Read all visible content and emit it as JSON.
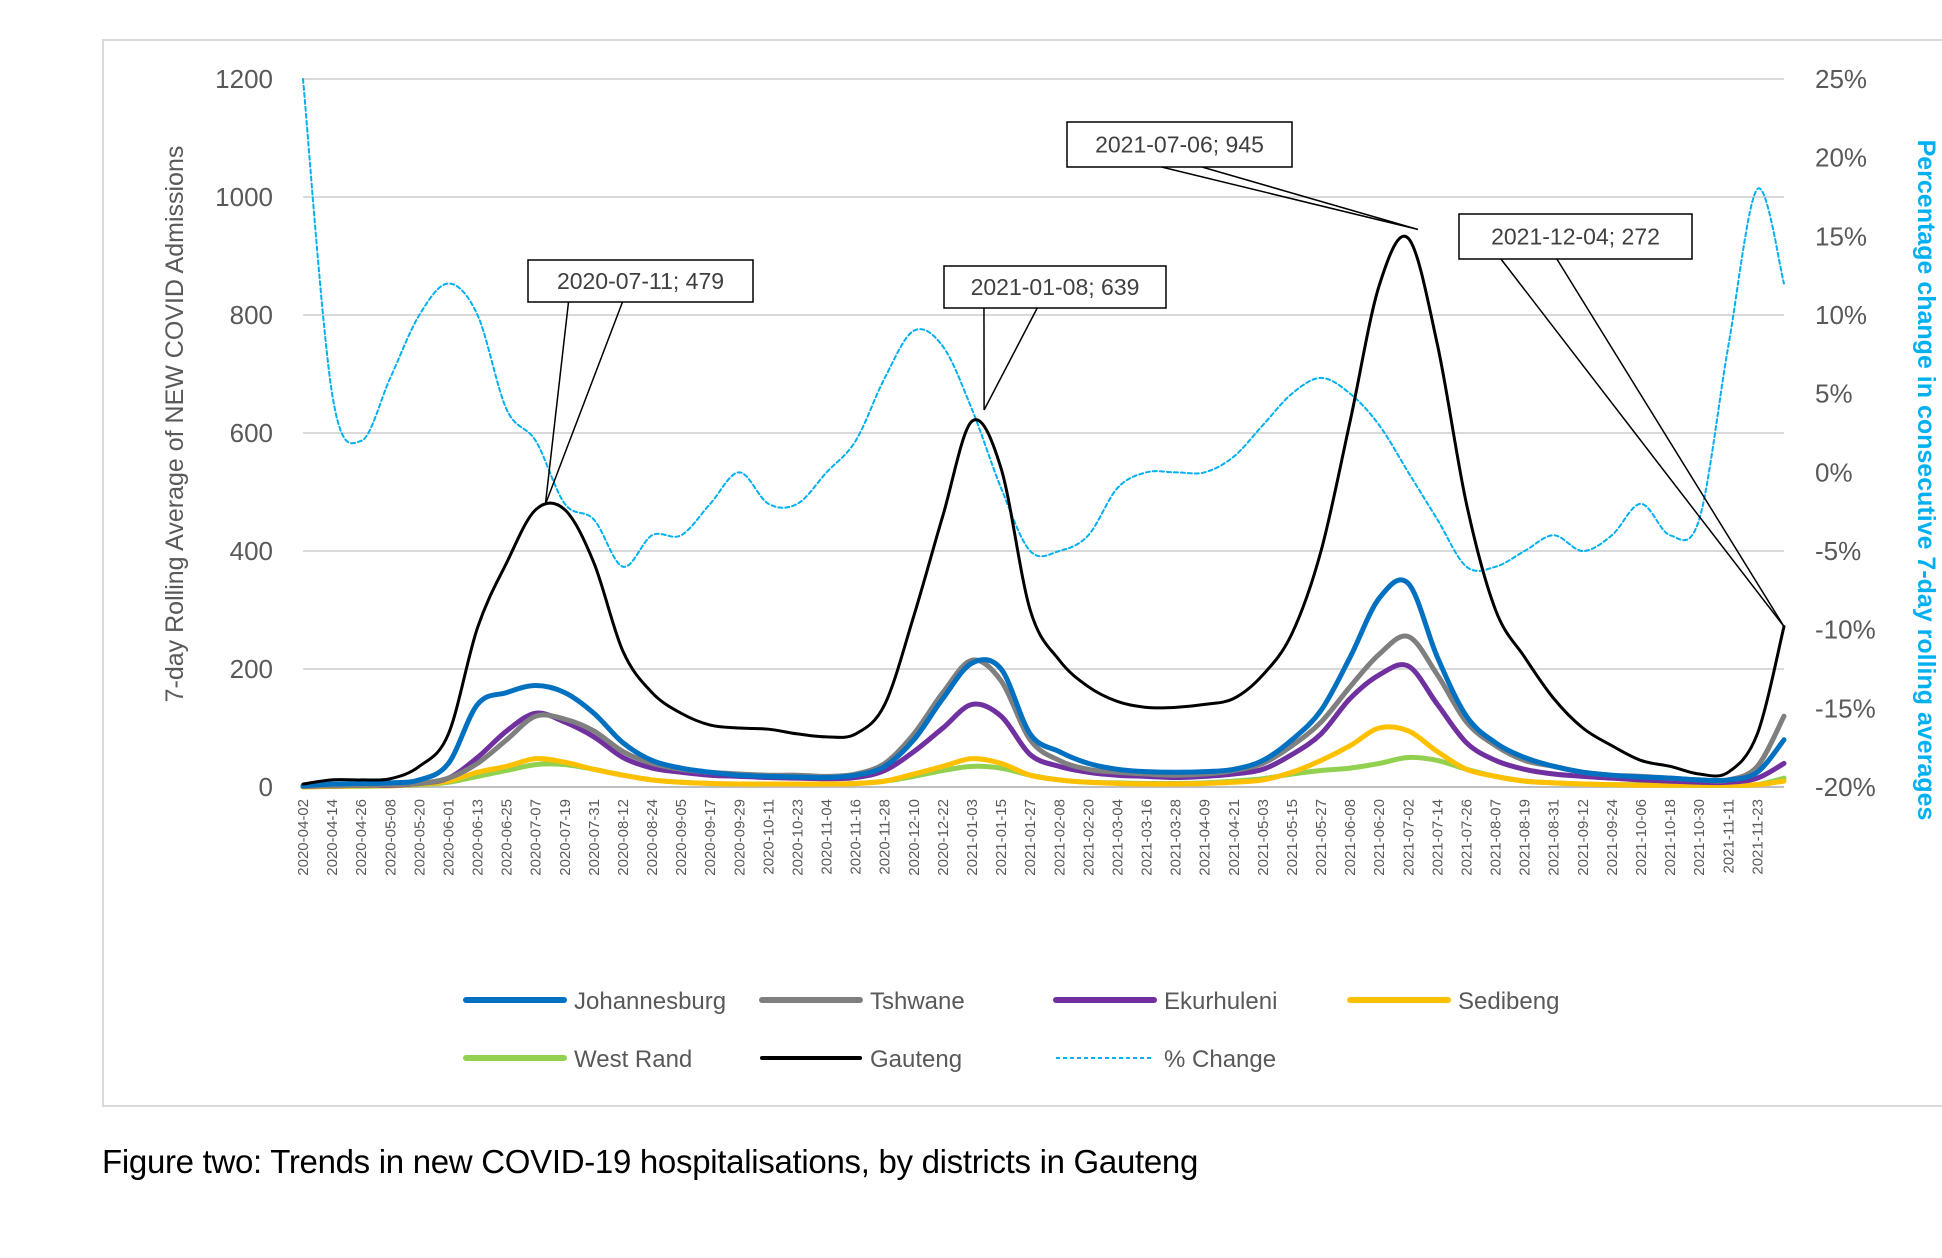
{
  "caption": "Figure two: Trends in new COVID-19 hospitalisations, by districts in Gauteng",
  "chart_data": {
    "type": "line",
    "title": "",
    "xlabel": "",
    "ylabel": "7-day Rolling Average of NEW COVID Admissions",
    "ylabel_right": "Percentage change in consecutive 7-day rolling averages",
    "ylim": [
      0,
      1200
    ],
    "yticks": [
      "0",
      "200",
      "400",
      "600",
      "800",
      "1000",
      "1200"
    ],
    "ylim_right": [
      -0.2,
      0.25
    ],
    "yticks_right": [
      "-20%",
      "-15%",
      "-10%",
      "-5%",
      "0%",
      "5%",
      "10%",
      "15%",
      "20%",
      "25%"
    ],
    "grid": true,
    "legend_position": "bottom",
    "x_start": "2020-04-02",
    "x_end": "2021-12-04",
    "x_step_days": 12,
    "x": [
      "2020-04-02",
      "2020-04-14",
      "2020-04-26",
      "2020-05-08",
      "2020-05-20",
      "2020-06-01",
      "2020-06-13",
      "2020-06-25",
      "2020-07-07",
      "2020-07-19",
      "2020-07-31",
      "2020-08-12",
      "2020-08-24",
      "2020-09-05",
      "2020-09-17",
      "2020-09-29",
      "2020-10-11",
      "2020-10-23",
      "2020-11-04",
      "2020-11-16",
      "2020-11-28",
      "2020-12-10",
      "2020-12-22",
      "2021-01-03",
      "2021-01-15",
      "2021-01-27",
      "2021-02-08",
      "2021-02-20",
      "2021-03-04",
      "2021-03-16",
      "2021-03-28",
      "2021-04-09",
      "2021-04-21",
      "2021-05-03",
      "2021-05-15",
      "2021-05-27",
      "2021-06-08",
      "2021-06-20",
      "2021-07-02",
      "2021-07-14",
      "2021-07-26",
      "2021-08-07",
      "2021-08-19",
      "2021-08-31",
      "2021-09-12",
      "2021-09-24",
      "2021-10-06",
      "2021-10-18",
      "2021-10-30",
      "2021-11-11",
      "2021-11-23",
      "2021-12-04"
    ],
    "series": [
      {
        "name": "Johannesburg",
        "color": "#0070c0",
        "axis": "left",
        "values": [
          2,
          5,
          6,
          7,
          12,
          40,
          140,
          160,
          172,
          160,
          125,
          75,
          45,
          32,
          25,
          20,
          18,
          17,
          16,
          20,
          35,
          80,
          150,
          210,
          200,
          90,
          60,
          40,
          30,
          26,
          25,
          26,
          30,
          45,
          80,
          130,
          220,
          320,
          345,
          220,
          120,
          75,
          50,
          35,
          25,
          20,
          17,
          15,
          12,
          12,
          25,
          80
        ]
      },
      {
        "name": "Tshwane",
        "color": "#7f7f7f",
        "axis": "left",
        "values": [
          1,
          2,
          3,
          4,
          6,
          15,
          40,
          80,
          120,
          115,
          95,
          60,
          40,
          30,
          25,
          22,
          20,
          20,
          18,
          22,
          40,
          90,
          160,
          215,
          180,
          80,
          45,
          30,
          25,
          22,
          20,
          22,
          28,
          40,
          70,
          110,
          170,
          225,
          255,
          190,
          110,
          70,
          45,
          35,
          25,
          20,
          18,
          15,
          12,
          12,
          35,
          120
        ]
      },
      {
        "name": "Ekurhuleni",
        "color": "#7030a0",
        "axis": "left",
        "values": [
          1,
          2,
          3,
          3,
          6,
          15,
          50,
          95,
          125,
          110,
          85,
          50,
          32,
          25,
          20,
          18,
          16,
          15,
          14,
          16,
          28,
          60,
          100,
          140,
          120,
          55,
          35,
          25,
          20,
          18,
          16,
          18,
          22,
          30,
          55,
          90,
          150,
          190,
          205,
          140,
          75,
          45,
          30,
          22,
          18,
          15,
          12,
          10,
          8,
          8,
          15,
          40
        ]
      },
      {
        "name": "Sedibeng",
        "color": "#ffc000",
        "axis": "left",
        "values": [
          0,
          1,
          2,
          2,
          5,
          10,
          25,
          35,
          48,
          42,
          30,
          20,
          12,
          8,
          6,
          5,
          5,
          5,
          5,
          6,
          10,
          22,
          35,
          48,
          40,
          20,
          12,
          8,
          6,
          5,
          5,
          6,
          8,
          12,
          25,
          45,
          70,
          100,
          95,
          60,
          30,
          18,
          10,
          7,
          5,
          4,
          3,
          3,
          3,
          3,
          4,
          10
        ]
      },
      {
        "name": "West Rand",
        "color": "#92d050",
        "axis": "left",
        "values": [
          0,
          1,
          1,
          2,
          4,
          8,
          18,
          28,
          38,
          38,
          30,
          20,
          12,
          8,
          6,
          5,
          5,
          5,
          5,
          6,
          10,
          18,
          28,
          35,
          32,
          20,
          12,
          8,
          7,
          6,
          6,
          7,
          10,
          14,
          22,
          28,
          32,
          40,
          50,
          45,
          30,
          18,
          10,
          7,
          5,
          4,
          4,
          3,
          3,
          3,
          4,
          15
        ]
      },
      {
        "name": "Gauteng",
        "color": "#000000",
        "axis": "left",
        "values": [
          5,
          12,
          12,
          14,
          35,
          90,
          270,
          380,
          470,
          470,
          380,
          230,
          160,
          125,
          105,
          100,
          98,
          90,
          85,
          90,
          140,
          290,
          460,
          620,
          540,
          300,
          215,
          170,
          145,
          135,
          135,
          140,
          150,
          190,
          260,
          400,
          620,
          850,
          930,
          750,
          480,
          300,
          220,
          150,
          100,
          70,
          45,
          35,
          22,
          25,
          90,
          272
        ]
      },
      {
        "name": "% Change",
        "color": "#00b0f0",
        "axis": "right",
        "style": "dashed",
        "values": [
          0.25,
          0.05,
          0.02,
          0.06,
          0.1,
          0.12,
          0.1,
          0.04,
          0.02,
          -0.02,
          -0.03,
          -0.06,
          -0.04,
          -0.04,
          -0.02,
          0.0,
          -0.02,
          -0.02,
          0.0,
          0.02,
          0.06,
          0.09,
          0.08,
          0.04,
          -0.01,
          -0.05,
          -0.05,
          -0.04,
          -0.01,
          0.0,
          0.0,
          0.0,
          0.01,
          0.03,
          0.05,
          0.06,
          0.05,
          0.03,
          0.0,
          -0.03,
          -0.06,
          -0.06,
          -0.05,
          -0.04,
          -0.05,
          -0.04,
          -0.02,
          -0.04,
          -0.03,
          0.08,
          0.18,
          0.12
        ]
      }
    ],
    "annotations": [
      {
        "label": "2020-07-11; 479",
        "date": "2020-07-11",
        "value": 479
      },
      {
        "label": "2021-01-08; 639",
        "date": "2021-01-08",
        "value": 639
      },
      {
        "label": "2021-07-06; 945",
        "date": "2021-07-06",
        "value": 945
      },
      {
        "label": "2021-12-04; 272",
        "date": "2021-12-04",
        "value": 272
      }
    ],
    "legend": [
      {
        "label": "Johannesburg",
        "color": "#0070c0",
        "style": "solid"
      },
      {
        "label": "Tshwane",
        "color": "#7f7f7f",
        "style": "solid"
      },
      {
        "label": "Ekurhuleni",
        "color": "#7030a0",
        "style": "solid"
      },
      {
        "label": "Sedibeng",
        "color": "#ffc000",
        "style": "solid"
      },
      {
        "label": "West Rand",
        "color": "#92d050",
        "style": "solid"
      },
      {
        "label": "Gauteng",
        "color": "#000000",
        "style": "solid"
      },
      {
        "label": "% Change",
        "color": "#00b0f0",
        "style": "dashed"
      }
    ]
  }
}
